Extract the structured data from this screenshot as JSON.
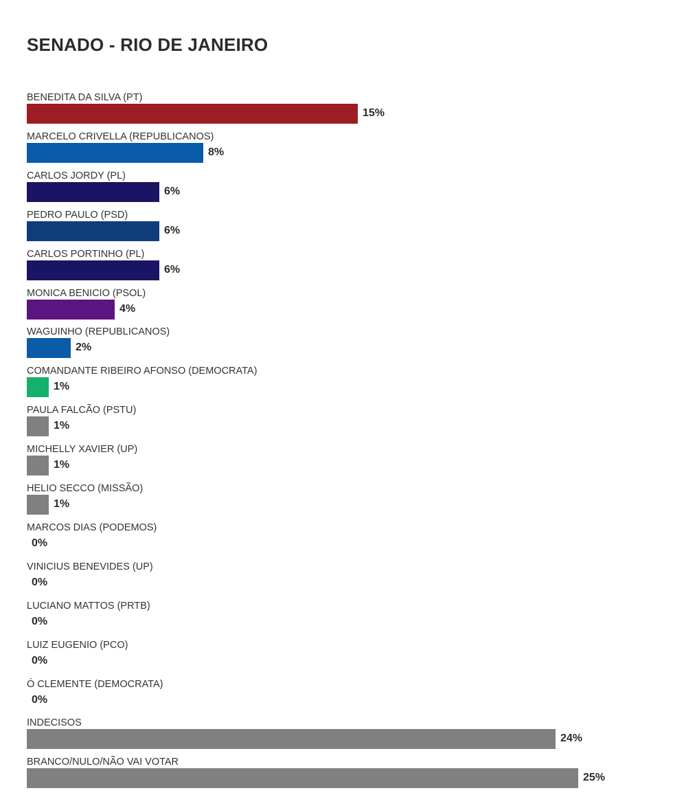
{
  "chart_data": {
    "type": "bar",
    "orientation": "horizontal",
    "title": "SENADO - RIO DE JANEIRO",
    "categories": [
      "BENEDITA DA SILVA (PT)",
      "MARCELO CRIVELLA (REPUBLICANOS)",
      "CARLOS JORDY (PL)",
      "PEDRO PAULO (PSD)",
      "CARLOS PORTINHO (PL)",
      "MONICA BENICIO (PSOL)",
      "WAGUINHO (REPUBLICANOS)",
      "COMANDANTE RIBEIRO AFONSO (DEMOCRATA)",
      "PAULA FALCÃO (PSTU)",
      "MICHELLY XAVIER (UP)",
      "HELIO SECCO (MISSÃO)",
      "MARCOS DIAS (PODEMOS)",
      "VINICIUS BENEVIDES (UP)",
      "LUCIANO MATTOS (PRTB)",
      "LUIZ EUGENIO (PCO)",
      "Ó CLEMENTE (DEMOCRATA)",
      "INDECISOS",
      "BRANCO/NULO/NÃO VAI VOTAR"
    ],
    "values": [
      15,
      8,
      6,
      6,
      6,
      4,
      2,
      1,
      1,
      1,
      1,
      0,
      0,
      0,
      0,
      0,
      24,
      25
    ],
    "value_labels": [
      "15%",
      "8%",
      "6%",
      "6%",
      "6%",
      "4%",
      "2%",
      "1%",
      "1%",
      "1%",
      "1%",
      "0%",
      "0%",
      "0%",
      "0%",
      "0%",
      "24%",
      "25%"
    ],
    "colors": [
      "#9e1c24",
      "#0a5ca8",
      "#1a1464",
      "#0e3d7a",
      "#1a1464",
      "#5b1580",
      "#0a5ca8",
      "#16b06e",
      "#808080",
      "#808080",
      "#808080",
      "#808080",
      "#808080",
      "#808080",
      "#808080",
      "#808080",
      "#808080",
      "#808080"
    ],
    "xlim": [
      0,
      25
    ]
  }
}
